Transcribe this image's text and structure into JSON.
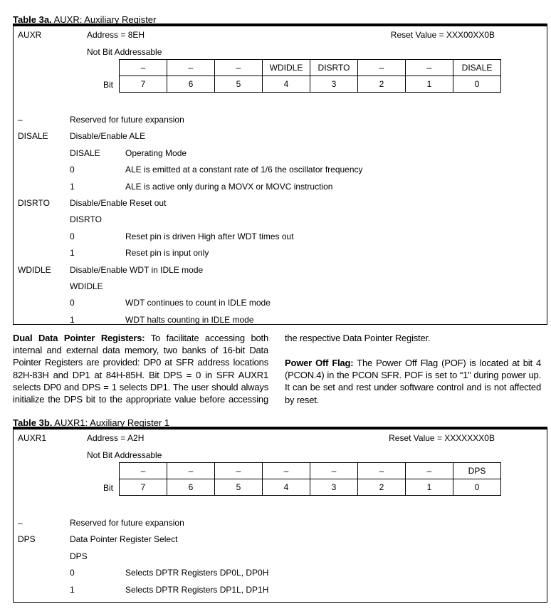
{
  "table3a": {
    "label": "Table 3a.",
    "title": "AUXR: Auxiliary Register",
    "reg": "AUXR",
    "address": "Address = 8EH",
    "reset": "Reset Value = XXX00XX0B",
    "addressable": "Not Bit Addressable",
    "bit_label": "Bit",
    "bit_names": [
      "–",
      "–",
      "–",
      "WDIDLE",
      "DISRTO",
      "–",
      "–",
      "DISALE"
    ],
    "bit_numbers": [
      "7",
      "6",
      "5",
      "4",
      "3",
      "2",
      "1",
      "0"
    ],
    "rows": [
      [
        "–",
        "Reserved for future expansion",
        ""
      ],
      [
        "DISALE",
        "Disable/Enable ALE",
        ""
      ],
      [
        "",
        "DISALE",
        "Operating Mode"
      ],
      [
        "",
        "0",
        "ALE is emitted at a constant rate of 1/6 the oscillator frequency"
      ],
      [
        "",
        "1",
        "ALE is active only during a MOVX or MOVC instruction"
      ],
      [
        "DISRTO",
        "Disable/Enable Reset out",
        ""
      ],
      [
        "",
        "DISRTO",
        ""
      ],
      [
        "",
        "0",
        "Reset pin is driven High after WDT times out"
      ],
      [
        "",
        "1",
        "Reset pin is input only"
      ],
      [
        "WDIDLE",
        "Disable/Enable WDT in IDLE mode",
        ""
      ],
      [
        "",
        "WDIDLE",
        ""
      ],
      [
        "",
        "0",
        "WDT continues to count in IDLE mode"
      ],
      [
        "",
        "1",
        "WDT halts counting in IDLE mode"
      ]
    ]
  },
  "paragraphs": {
    "dual_heading": "Dual Data Pointer Registers:",
    "dual_text": " To facilitate accessing both internal and external data memory, two banks of 16-bit Data Pointer Registers are provided: DP0 at SFR address locations 82H-83H and DP1 at 84H-85H. Bit DPS = 0 in SFR AUXR1 selects DP0 and DPS = 1 selects DP1. The user should always initialize the DPS bit to the appropriate value before accessing the respective Data Pointer Register.",
    "pof_heading": "Power Off Flag:",
    "pof_text": " The Power Off Flag (POF) is located at bit 4 (PCON.4) in the PCON SFR. POF is set to “1” during power up. It can be set and rest under software control and is not affected by reset."
  },
  "table3b": {
    "label": "Table 3b.",
    "title": "AUXR1: Auxiliary Register 1",
    "reg": "AUXR1",
    "address": "Address = A2H",
    "reset": "Reset Value = XXXXXXX0B",
    "addressable": "Not Bit Addressable",
    "bit_label": "Bit",
    "bit_names": [
      "–",
      "–",
      "–",
      "–",
      "–",
      "–",
      "–",
      "DPS"
    ],
    "bit_numbers": [
      "7",
      "6",
      "5",
      "4",
      "3",
      "2",
      "1",
      "0"
    ],
    "rows": [
      [
        "–",
        "Reserved for future expansion",
        ""
      ],
      [
        "DPS",
        "Data Pointer Register Select",
        ""
      ],
      [
        "",
        "DPS",
        ""
      ],
      [
        "",
        "0",
        "Selects DPTR Registers DP0L, DP0H"
      ],
      [
        "",
        "1",
        "Selects DPTR Registers DP1L, DP1H"
      ]
    ]
  }
}
